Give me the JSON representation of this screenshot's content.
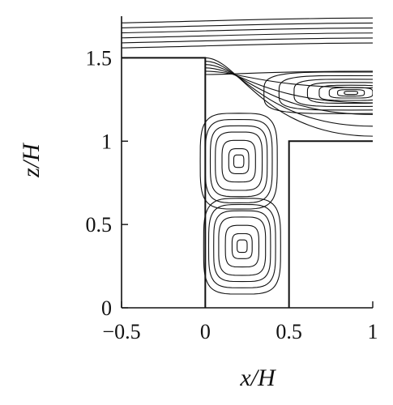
{
  "chart_data": {
    "type": "streamline contour plot",
    "xlabel": "x/H",
    "ylabel": "z/H",
    "xlim": [
      -0.5,
      1.0
    ],
    "ylim": [
      0,
      1.75
    ],
    "x_ticks": [
      -0.5,
      0,
      0.5,
      1
    ],
    "x_tick_labels": [
      "−0.5",
      "0",
      "0.5",
      "1"
    ],
    "y_ticks": [
      0,
      0.5,
      1,
      1.5
    ],
    "y_tick_labels": [
      "0",
      "0.5",
      "1",
      "1.5"
    ],
    "geometry": {
      "upstream_block": {
        "x": [
          -0.5,
          0.0
        ],
        "z": [
          0,
          1.5
        ]
      },
      "downstream_block": {
        "x": [
          0.5,
          1.0
        ],
        "z": [
          0,
          1.0
        ]
      }
    },
    "vortices": [
      {
        "center": [
          0.2,
          0.88
        ],
        "rings": [
          0.03,
          0.06,
          0.1,
          0.14,
          0.17,
          0.2,
          0.23
        ],
        "aspect": 1.25
      },
      {
        "center": [
          0.22,
          0.37
        ],
        "rings": [
          0.03,
          0.06,
          0.1,
          0.14,
          0.17,
          0.2,
          0.23
        ],
        "aspect": 1.25
      },
      {
        "center": [
          0.87,
          1.29
        ],
        "rings": [
          0.04,
          0.08,
          0.13,
          0.19,
          0.26,
          0.34,
          0.43,
          0.52
        ],
        "aspect": 0.24
      }
    ],
    "free_stream_levels": [
      1.56,
      1.59,
      1.62,
      1.65,
      1.68,
      1.71
    ]
  }
}
